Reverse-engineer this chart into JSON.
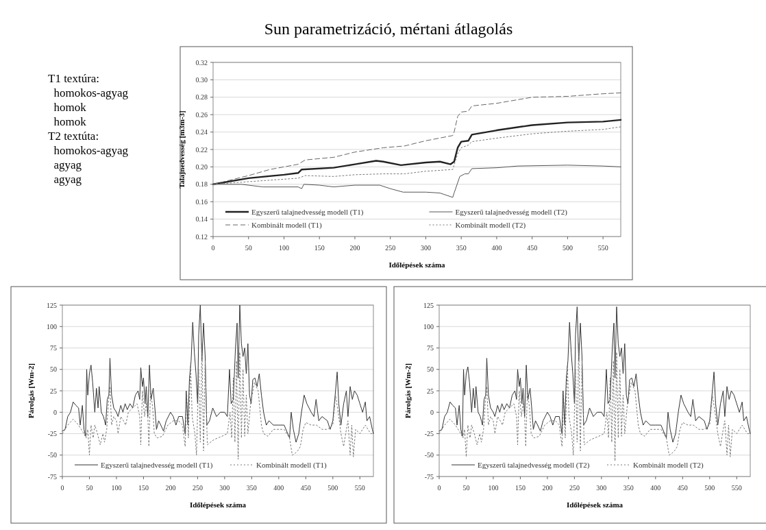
{
  "chart_data": [
    {
      "type": "line",
      "title": "Sun parametrizáció, mértani átlagolás",
      "xlabel": "Időlépések száma",
      "ylabel": "Talajnedvesség [m3m-3]",
      "annotations": [
        "T1 textúra:",
        "  homokos-agyag",
        "  homok",
        "  homok",
        "T2 textúta:",
        "  homokos-agyag",
        "  agyag",
        "  agyag"
      ],
      "xlim": [
        0,
        575
      ],
      "xticks": [
        0,
        50,
        100,
        150,
        200,
        250,
        300,
        350,
        400,
        450,
        500,
        550
      ],
      "ylim": [
        0.12,
        0.32
      ],
      "yticks": [
        0.12,
        0.14,
        0.16,
        0.18,
        {
          "value": 0.2,
          "label": "0.20"
        },
        0.22,
        0.24,
        0.26,
        0.28,
        {
          "value": 0.3,
          "label": "0.30"
        },
        0.32
      ],
      "grid": "y",
      "legend": "bottom",
      "series": [
        {
          "name": "Egyszerű talajnedvesség modell (T1)",
          "color": "#222222",
          "line_style": "solid",
          "x": [
            0,
            50,
            100,
            120,
            125,
            170,
            200,
            230,
            240,
            265,
            300,
            320,
            335,
            340,
            345,
            350,
            360,
            365,
            400,
            450,
            500,
            550,
            575
          ],
          "values": [
            0.18,
            0.187,
            0.191,
            0.193,
            0.197,
            0.199,
            0.203,
            0.207,
            0.206,
            0.202,
            0.205,
            0.206,
            0.203,
            0.206,
            0.222,
            0.229,
            0.23,
            0.237,
            0.242,
            0.248,
            0.251,
            0.252,
            0.254
          ]
        },
        {
          "name": "Egyszerű talajnedvesség modell (T2)",
          "color": "#555555",
          "line_style": "solid",
          "x": [
            0,
            40,
            70,
            120,
            125,
            128,
            150,
            170,
            200,
            235,
            250,
            268,
            300,
            320,
            338,
            340,
            348,
            355,
            360,
            365,
            400,
            430,
            500,
            550,
            575
          ],
          "values": [
            0.18,
            0.18,
            0.177,
            0.177,
            0.175,
            0.18,
            0.179,
            0.177,
            0.179,
            0.179,
            0.175,
            0.171,
            0.171,
            0.17,
            0.165,
            0.17,
            0.189,
            0.192,
            0.192,
            0.198,
            0.199,
            0.201,
            0.202,
            0.201,
            0.2
          ]
        },
        {
          "name": "Kombinált modell (T1)",
          "color": "#666666",
          "line_style": "dashed",
          "x": [
            0,
            50,
            80,
            120,
            130,
            170,
            200,
            240,
            270,
            300,
            338,
            340,
            345,
            350,
            360,
            365,
            400,
            450,
            500,
            550,
            575
          ],
          "values": [
            0.18,
            0.19,
            0.197,
            0.203,
            0.208,
            0.211,
            0.217,
            0.222,
            0.224,
            0.23,
            0.236,
            0.24,
            0.258,
            0.263,
            0.264,
            0.27,
            0.273,
            0.28,
            0.281,
            0.284,
            0.285
          ]
        },
        {
          "name": "Kombinált modell (T2)",
          "color": "#777777",
          "line_style": "dotted",
          "x": [
            0,
            50,
            120,
            130,
            170,
            200,
            240,
            270,
            300,
            338,
            345,
            350,
            360,
            365,
            400,
            450,
            500,
            550,
            575
          ],
          "values": [
            0.18,
            0.183,
            0.187,
            0.19,
            0.189,
            0.191,
            0.192,
            0.192,
            0.195,
            0.197,
            0.215,
            0.222,
            0.225,
            0.229,
            0.233,
            0.238,
            0.241,
            0.243,
            0.246
          ]
        }
      ]
    },
    {
      "type": "line",
      "xlabel": "Időlépések száma",
      "ylabel": "Párolgás [Wm-2]",
      "xlim": [
        0,
        575
      ],
      "xticks": [
        0,
        50,
        100,
        150,
        200,
        250,
        300,
        350,
        400,
        450,
        500,
        550
      ],
      "ylim": [
        -75,
        125
      ],
      "yticks": [
        -75,
        -50,
        -25,
        0,
        25,
        50,
        75,
        100,
        125
      ],
      "grid": "y",
      "legend": "bottom",
      "series": [
        {
          "name": "Egyszerű talajnedvesség modell (T1)",
          "color": "#333333",
          "line_style": "solid",
          "x": [
            0,
            5,
            10,
            15,
            20,
            25,
            30,
            33,
            37,
            40,
            43,
            45,
            47,
            50,
            53,
            56,
            60,
            63,
            66,
            68,
            72,
            76,
            80,
            83,
            86,
            88,
            91,
            95,
            100,
            103,
            108,
            112,
            116,
            120,
            125,
            130,
            135,
            140,
            143,
            145,
            148,
            150,
            153,
            155,
            158,
            161,
            164,
            168,
            171,
            174,
            178,
            182,
            187,
            192,
            200,
            205,
            210,
            215,
            222,
            227,
            229,
            232,
            235,
            238,
            241,
            244,
            247,
            250,
            252,
            255,
            258,
            261,
            264,
            267,
            272,
            278,
            285,
            292,
            300,
            305,
            309,
            312,
            316,
            320,
            323,
            325,
            328,
            331,
            334,
            337,
            340,
            343,
            346,
            349,
            352,
            356,
            360,
            364,
            368,
            372,
            377,
            382,
            390,
            400,
            410,
            420,
            423,
            427,
            432,
            437,
            442,
            447,
            452,
            460,
            465,
            469,
            474,
            480,
            490,
            495,
            500,
            505,
            508,
            511,
            515,
            520,
            525,
            528,
            532,
            536,
            540,
            545,
            550,
            555,
            560,
            563,
            568,
            573,
            575
          ],
          "values": [
            -22,
            -20,
            -5,
            0,
            12,
            8,
            5,
            -15,
            8,
            -20,
            -28,
            50,
            20,
            45,
            55,
            35,
            0,
            28,
            5,
            30,
            0,
            -5,
            -15,
            15,
            20,
            63,
            20,
            5,
            0,
            -5,
            8,
            0,
            10,
            3,
            10,
            5,
            20,
            25,
            15,
            52,
            30,
            40,
            10,
            30,
            -5,
            55,
            15,
            28,
            5,
            -20,
            -10,
            -15,
            -22,
            -10,
            0,
            -5,
            -15,
            -5,
            -5,
            -25,
            25,
            -15,
            40,
            60,
            105,
            70,
            45,
            10,
            90,
            125,
            60,
            104,
            65,
            -15,
            -10,
            5,
            -5,
            0,
            0,
            -5,
            50,
            10,
            15,
            75,
            104,
            40,
            125,
            80,
            65,
            75,
            45,
            80,
            20,
            10,
            38,
            40,
            30,
            45,
            20,
            0,
            -15,
            -10,
            -15,
            -15,
            -15,
            -30,
            0,
            -20,
            -35,
            -25,
            0,
            20,
            10,
            0,
            -5,
            15,
            -10,
            -5,
            -10,
            -20,
            -10,
            25,
            47,
            10,
            -15,
            10,
            25,
            -5,
            30,
            15,
            25,
            20,
            10,
            0,
            12,
            -10,
            -5,
            -20,
            -25
          ]
        },
        {
          "name": "Kombinált modell (T1)",
          "color": "#777777",
          "line_style": "dotted",
          "x": [
            0,
            10,
            20,
            30,
            40,
            44,
            47,
            50,
            53,
            57,
            60,
            65,
            70,
            75,
            78,
            82,
            85,
            88,
            91,
            95,
            100,
            103,
            108,
            113,
            117,
            122,
            130,
            138,
            143,
            145,
            148,
            152,
            155,
            158,
            160,
            163,
            167,
            170,
            175,
            185,
            195,
            205,
            215,
            222,
            227,
            230,
            233,
            237,
            240,
            245,
            248,
            252,
            255,
            258,
            261,
            264,
            268,
            280,
            295,
            305,
            310,
            313,
            316,
            319,
            322,
            325,
            328,
            331,
            334,
            337,
            340,
            343,
            348,
            355,
            362,
            368,
            372,
            380,
            390,
            400,
            410,
            420,
            425,
            430,
            435,
            440,
            445,
            450,
            460,
            470,
            480,
            490,
            500,
            505,
            510,
            515,
            520,
            525,
            528,
            532,
            535,
            538,
            542,
            550,
            560,
            570,
            575
          ],
          "values": [
            -25,
            -15,
            -8,
            -15,
            -25,
            -30,
            -20,
            -50,
            -15,
            -30,
            -15,
            -25,
            -38,
            -25,
            -35,
            -20,
            10,
            30,
            -15,
            -5,
            -10,
            -25,
            -5,
            -10,
            -15,
            0,
            5,
            10,
            -5,
            -38,
            25,
            -5,
            10,
            -5,
            -40,
            25,
            5,
            -25,
            -30,
            -28,
            -15,
            -10,
            -10,
            -15,
            -40,
            20,
            -30,
            55,
            -5,
            -25,
            -50,
            50,
            -35,
            80,
            -45,
            60,
            -38,
            -32,
            -28,
            -25,
            0,
            -30,
            40,
            -35,
            60,
            -55,
            70,
            -30,
            50,
            -28,
            20,
            -25,
            10,
            35,
            25,
            -15,
            -25,
            -28,
            -20,
            -20,
            -20,
            -30,
            -50,
            -48,
            -45,
            -40,
            -20,
            -12,
            -15,
            -15,
            -20,
            -20,
            -15,
            20,
            0,
            -25,
            -40,
            -20,
            -10,
            -50,
            -15,
            -52,
            -20,
            -25,
            -15,
            -25,
            -25
          ]
        }
      ]
    },
    {
      "type": "line",
      "xlabel": "Időlépések száma",
      "ylabel": "Párolgás [Wm-2]",
      "xlim": [
        0,
        575
      ],
      "xticks": [
        0,
        50,
        100,
        150,
        200,
        250,
        300,
        350,
        400,
        450,
        500,
        550
      ],
      "ylim": [
        -75,
        125
      ],
      "yticks": [
        -75,
        -50,
        -25,
        0,
        25,
        50,
        75,
        100,
        125
      ],
      "grid": "y",
      "legend": "bottom",
      "series": [
        {
          "name": "Egyszerű talajnedvesség modell (T2)",
          "color": "#333333",
          "line_style": "solid",
          "x": [
            0,
            5,
            10,
            15,
            20,
            25,
            30,
            33,
            37,
            40,
            43,
            45,
            47,
            50,
            53,
            56,
            60,
            63,
            66,
            68,
            72,
            76,
            80,
            83,
            86,
            88,
            91,
            95,
            100,
            103,
            108,
            112,
            116,
            120,
            125,
            130,
            135,
            140,
            143,
            145,
            148,
            150,
            153,
            155,
            158,
            161,
            164,
            168,
            171,
            174,
            178,
            182,
            187,
            192,
            200,
            205,
            210,
            215,
            222,
            227,
            229,
            232,
            235,
            238,
            241,
            244,
            247,
            250,
            252,
            255,
            258,
            261,
            264,
            267,
            272,
            278,
            285,
            292,
            300,
            305,
            309,
            312,
            316,
            320,
            323,
            325,
            328,
            331,
            334,
            337,
            340,
            343,
            346,
            349,
            352,
            356,
            360,
            364,
            368,
            372,
            377,
            382,
            390,
            400,
            410,
            420,
            423,
            427,
            432,
            437,
            442,
            447,
            452,
            460,
            465,
            469,
            474,
            480,
            490,
            495,
            500,
            505,
            508,
            511,
            515,
            520,
            525,
            528,
            532,
            536,
            540,
            545,
            550,
            555,
            560,
            563,
            568,
            573,
            575
          ],
          "values": [
            -22,
            -20,
            -5,
            0,
            12,
            8,
            5,
            -15,
            8,
            -20,
            -28,
            50,
            20,
            45,
            53,
            35,
            0,
            28,
            5,
            30,
            0,
            -5,
            -15,
            15,
            20,
            63,
            20,
            5,
            0,
            -5,
            8,
            0,
            10,
            3,
            10,
            5,
            20,
            25,
            15,
            50,
            30,
            40,
            10,
            28,
            -5,
            55,
            15,
            28,
            5,
            -20,
            -10,
            -15,
            -22,
            -10,
            0,
            -5,
            -15,
            -5,
            -5,
            -25,
            25,
            -15,
            40,
            60,
            105,
            70,
            45,
            10,
            90,
            123,
            60,
            104,
            65,
            -15,
            -10,
            5,
            -5,
            0,
            0,
            -5,
            50,
            10,
            15,
            75,
            104,
            40,
            123,
            80,
            65,
            75,
            45,
            80,
            20,
            10,
            38,
            40,
            30,
            45,
            20,
            0,
            -15,
            -10,
            -15,
            -15,
            -15,
            -30,
            0,
            -20,
            -35,
            -25,
            0,
            20,
            10,
            0,
            -5,
            15,
            -10,
            -5,
            -10,
            -20,
            -10,
            25,
            47,
            10,
            -15,
            10,
            25,
            -5,
            30,
            15,
            25,
            20,
            10,
            0,
            12,
            -10,
            -5,
            -20,
            -25
          ]
        },
        {
          "name": "Kombinált modell (T2)",
          "color": "#777777",
          "line_style": "dotted",
          "x": [
            0,
            10,
            20,
            30,
            40,
            44,
            47,
            50,
            53,
            57,
            60,
            65,
            70,
            75,
            78,
            82,
            85,
            88,
            91,
            95,
            100,
            103,
            108,
            113,
            117,
            122,
            130,
            138,
            143,
            145,
            148,
            152,
            155,
            158,
            160,
            163,
            167,
            170,
            175,
            185,
            195,
            205,
            215,
            222,
            227,
            230,
            233,
            237,
            240,
            245,
            248,
            252,
            255,
            258,
            261,
            264,
            268,
            280,
            295,
            305,
            310,
            313,
            316,
            319,
            322,
            325,
            328,
            331,
            334,
            337,
            340,
            343,
            348,
            355,
            362,
            368,
            372,
            380,
            390,
            400,
            410,
            420,
            425,
            430,
            435,
            440,
            445,
            450,
            460,
            470,
            480,
            490,
            500,
            505,
            510,
            515,
            520,
            525,
            528,
            532,
            535,
            538,
            542,
            550,
            560,
            570,
            575
          ],
          "values": [
            -25,
            -15,
            -8,
            -15,
            -25,
            -30,
            -20,
            -52,
            -15,
            -30,
            -15,
            -25,
            -38,
            -25,
            -35,
            -20,
            10,
            30,
            -15,
            -5,
            -10,
            -25,
            -5,
            -10,
            -15,
            0,
            5,
            10,
            -5,
            -38,
            25,
            -5,
            10,
            -5,
            -40,
            25,
            5,
            -25,
            -30,
            -28,
            -15,
            -10,
            -10,
            -15,
            -40,
            20,
            -30,
            55,
            -5,
            -25,
            -50,
            50,
            -35,
            80,
            -45,
            60,
            -38,
            -32,
            -28,
            -25,
            0,
            -30,
            40,
            -35,
            60,
            -57,
            70,
            -30,
            50,
            -28,
            20,
            -25,
            10,
            35,
            25,
            -15,
            -25,
            -28,
            -20,
            -20,
            -20,
            -30,
            -50,
            -48,
            -45,
            -40,
            -20,
            -12,
            -15,
            -15,
            -20,
            -20,
            -15,
            20,
            0,
            -25,
            -40,
            -20,
            -10,
            -50,
            -15,
            -52,
            -20,
            -25,
            -15,
            -25,
            -25
          ]
        }
      ]
    }
  ]
}
